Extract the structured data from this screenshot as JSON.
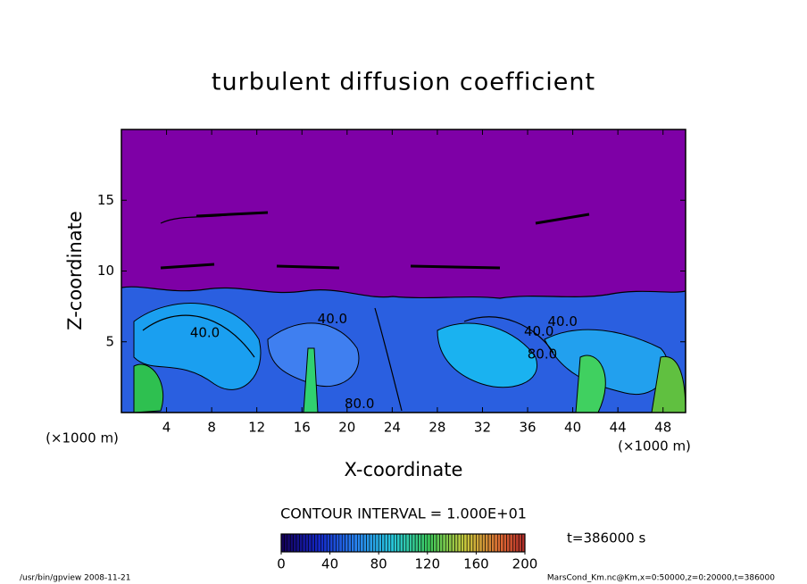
{
  "chart_data": {
    "type": "contour",
    "title": "turbulent diffusion coefficient",
    "xlabel": "X-coordinate",
    "ylabel": "Z-coordinate",
    "x_unit": "(×1000 m)",
    "xlim": [
      0,
      50
    ],
    "ylim": [
      0,
      20
    ],
    "xticks": [
      4,
      8,
      12,
      16,
      20,
      24,
      28,
      32,
      36,
      40,
      44,
      48
    ],
    "yticks": [
      5,
      10,
      15
    ],
    "contour_interval": {
      "value": 10,
      "label": "CONTOUR INTERVAL = 1.000E+01"
    },
    "contour_labels": [
      {
        "value": 40,
        "label": "40.0",
        "x": 18.7,
        "z": 6.6
      },
      {
        "value": 40,
        "label": "40.0",
        "x": 7.4,
        "z": 5.6
      },
      {
        "value": 40,
        "label": "40.0",
        "x": 39.1,
        "z": 6.4
      },
      {
        "value": 40,
        "label": "40.0",
        "x": 37.0,
        "z": 5.7
      },
      {
        "value": 80,
        "label": "80.0",
        "x": 37.3,
        "z": 4.1
      },
      {
        "value": 80,
        "label": "80.0",
        "x": 21.1,
        "z": 0.6
      }
    ],
    "colorbar": {
      "clim": [
        0,
        200
      ],
      "ticks": [
        0,
        40,
        80,
        120,
        160,
        200
      ]
    },
    "time_label": "t=386000 s",
    "footer_left": "/usr/bin/gpview   2008-11-21",
    "footer_right": "MarsCond_Km.nc@Km,x=0:50000,z=0:20000,t=386000"
  }
}
